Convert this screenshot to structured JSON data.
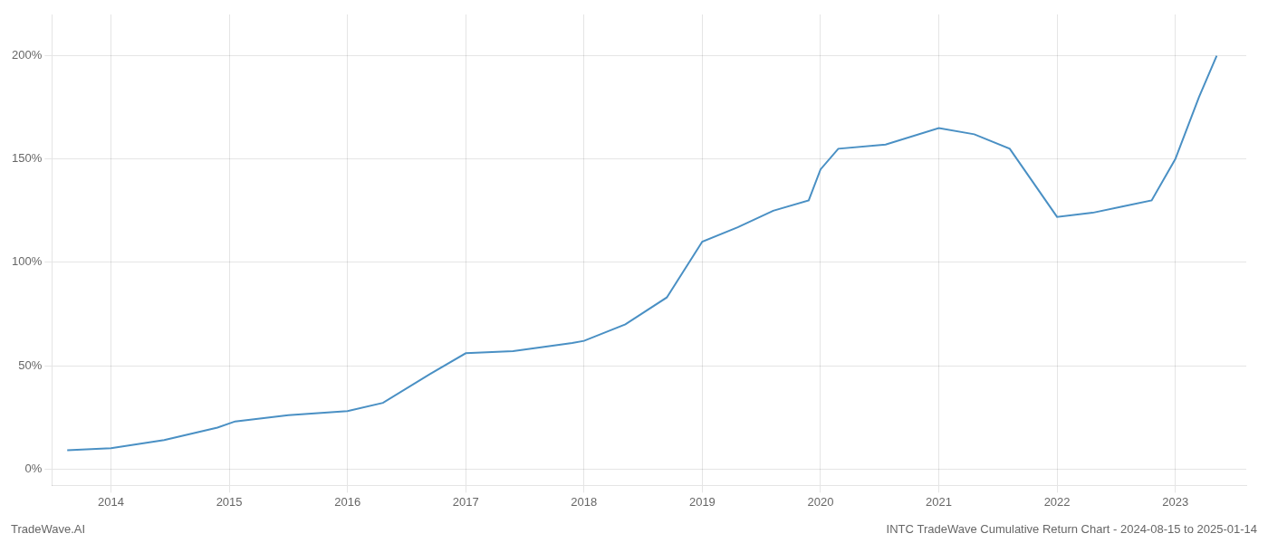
{
  "chart_data": {
    "type": "line",
    "x": [
      2013.63,
      2014.0,
      2014.45,
      2014.9,
      2015.05,
      2015.5,
      2016.0,
      2016.3,
      2016.7,
      2017.0,
      2017.4,
      2017.9,
      2018.0,
      2018.35,
      2018.7,
      2019.0,
      2019.3,
      2019.6,
      2019.9,
      2020.0,
      2020.15,
      2020.55,
      2021.0,
      2021.3,
      2021.6,
      2022.0,
      2022.3,
      2022.55,
      2022.8,
      2023.0,
      2023.2,
      2023.35
    ],
    "values": [
      9,
      10,
      14,
      20,
      23,
      26,
      28,
      32,
      46,
      56,
      57,
      61,
      62,
      70,
      83,
      110,
      117,
      125,
      130,
      145,
      155,
      157,
      165,
      162,
      155,
      122,
      124,
      127,
      130,
      150,
      180,
      200
    ],
    "color": "#4a90c4",
    "xlim": [
      2013.5,
      2023.6
    ],
    "xticks": [
      2014,
      2015,
      2016,
      2017,
      2018,
      2019,
      2020,
      2021,
      2022,
      2023
    ],
    "ylim": [
      -8,
      220
    ],
    "yticks": [
      {
        "value": 0,
        "label": "0%"
      },
      {
        "value": 50,
        "label": "50%"
      },
      {
        "value": 100,
        "label": "100%"
      },
      {
        "value": 150,
        "label": "150%"
      },
      {
        "value": 200,
        "label": "200%"
      }
    ],
    "grid": true,
    "annotations": [
      "TradeWave.AI",
      "INTC TradeWave Cumulative Return Chart - 2024-08-15 to 2025-01-14"
    ]
  }
}
